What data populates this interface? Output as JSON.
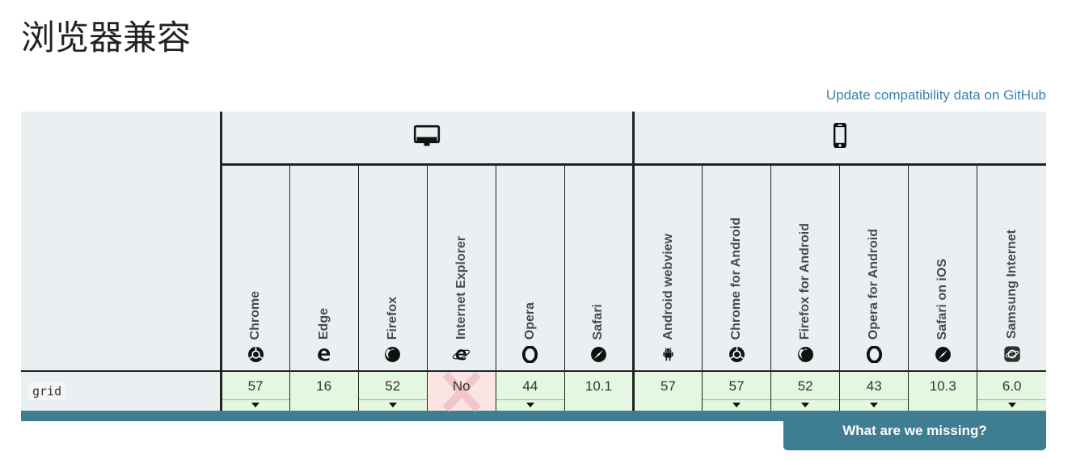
{
  "page": {
    "title": "浏览器兼容",
    "update_link_label": "Update compatibility data on GitHub",
    "footer_button_label": "What are we missing?"
  },
  "colors": {
    "header_bg": "#eaeff2",
    "supported_bg": "#e4f8e1",
    "unsupported_bg": "#fbe4e4",
    "unsupported_x_mark": "#f0c6c8",
    "accent_teal": "#3f7d93",
    "link_blue": "#3c82ab",
    "border_dark": "#222222"
  },
  "table": {
    "device_sections": [
      {
        "label": "desktop",
        "icon": "desktop-icon",
        "columns": 6
      },
      {
        "label": "mobile",
        "icon": "mobile-icon",
        "columns": 6
      }
    ],
    "browsers": [
      {
        "name": "Chrome",
        "icon": "chrome-icon"
      },
      {
        "name": "Edge",
        "icon": "edge-icon"
      },
      {
        "name": "Firefox",
        "icon": "firefox-icon"
      },
      {
        "name": "Internet Explorer",
        "icon": "internet-explorer-icon"
      },
      {
        "name": "Opera",
        "icon": "opera-icon"
      },
      {
        "name": "Safari",
        "icon": "safari-icon"
      },
      {
        "name": "Android webview",
        "icon": "android-icon"
      },
      {
        "name": "Chrome for Android",
        "icon": "chrome-icon"
      },
      {
        "name": "Firefox for Android",
        "icon": "firefox-icon"
      },
      {
        "name": "Opera for Android",
        "icon": "opera-icon"
      },
      {
        "name": "Safari on iOS",
        "icon": "safari-icon"
      },
      {
        "name": "Samsung Internet",
        "icon": "samsung-internet-icon"
      }
    ],
    "rows": [
      {
        "feature": "grid",
        "cells": [
          {
            "value": "57",
            "status": "supported",
            "notes": true
          },
          {
            "value": "16",
            "status": "supported",
            "notes": false
          },
          {
            "value": "52",
            "status": "supported",
            "notes": true
          },
          {
            "value": "No",
            "status": "unsupported",
            "notes": false
          },
          {
            "value": "44",
            "status": "supported",
            "notes": true
          },
          {
            "value": "10.1",
            "status": "supported",
            "notes": false
          },
          {
            "value": "57",
            "status": "supported",
            "notes": false
          },
          {
            "value": "57",
            "status": "supported",
            "notes": true
          },
          {
            "value": "52",
            "status": "supported",
            "notes": true
          },
          {
            "value": "43",
            "status": "supported",
            "notes": true
          },
          {
            "value": "10.3",
            "status": "supported",
            "notes": false
          },
          {
            "value": "6.0",
            "status": "supported",
            "notes": true
          }
        ]
      }
    ]
  }
}
